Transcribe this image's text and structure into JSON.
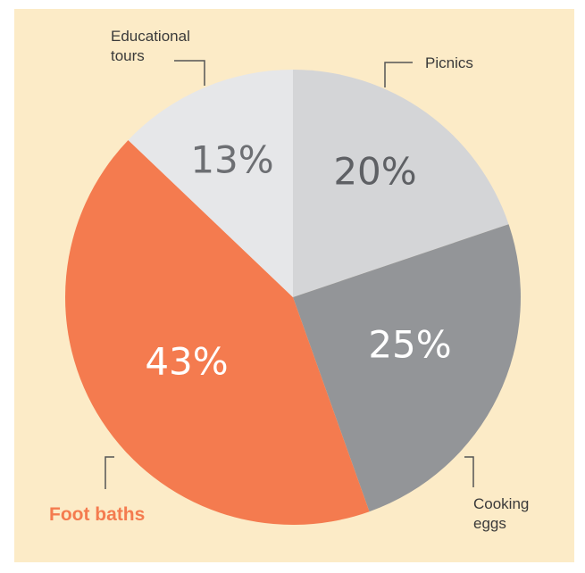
{
  "chart_data": {
    "type": "pie",
    "title": "",
    "slices": [
      {
        "label": "Picnics",
        "label_lines": [
          "Picnics"
        ],
        "value": 20,
        "display": "20%",
        "color": "#d4d5d7",
        "text_color": "#5e6064"
      },
      {
        "label": "Cooking eggs",
        "label_lines": [
          "Cooking",
          "eggs"
        ],
        "value": 25,
        "display": "25%",
        "color": "#939598",
        "text_color": "#ffffff"
      },
      {
        "label": "Foot baths",
        "label_lines": [
          "Foot baths"
        ],
        "value": 43,
        "display": "43%",
        "color": "#f47b4f",
        "text_color": "#ffffff",
        "label_color": "#f47b4f"
      },
      {
        "label": "Educational tours",
        "label_lines": [
          "Educational",
          "tours"
        ],
        "value": 13,
        "display": "13%",
        "color": "#e6e7e9",
        "text_color": "#6d6f73"
      }
    ],
    "start_angle": "12 o'clock",
    "direction": "clockwise",
    "background": "#fcebc7"
  }
}
